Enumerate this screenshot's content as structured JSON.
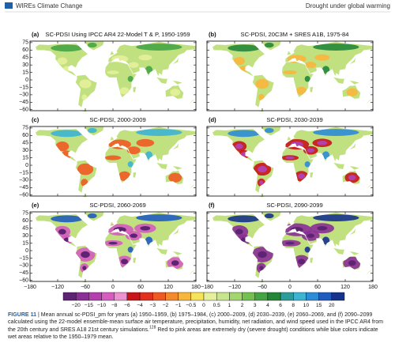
{
  "header": {
    "journal": "WIREs Climate Change",
    "section": "Drought under global warming"
  },
  "figure": {
    "panels": [
      {
        "label": "(a)",
        "title": "SC-PDSI Using IPCC AR4 22-Model T & P, 1950-1959"
      },
      {
        "label": "(b)",
        "title": "SC-PDSI, 20C3M + SRES A1B, 1975-84"
      },
      {
        "label": "(c)",
        "title": "SC-PDSI, 2000-2009"
      },
      {
        "label": "(d)",
        "title": "SC-PDSI, 2030-2039"
      },
      {
        "label": "(e)",
        "title": "SC-PDSI, 2060-2069"
      },
      {
        "label": "(f)",
        "title": "SC-PDSI, 2090-2099"
      }
    ],
    "lat_labels": [
      "75",
      "60",
      "45",
      "30",
      "15",
      "0",
      "−15",
      "−30",
      "−45",
      "−60"
    ],
    "lon_labels": [
      "−180",
      "−120",
      "−60",
      "0",
      "60",
      "120",
      "180"
    ],
    "colorbar": {
      "labels": [
        "−20",
        "−15",
        "−10",
        "−8",
        "−6",
        "−4",
        "−3",
        "−2",
        "−1",
        "−0.5",
        "0",
        "0.5",
        "1",
        "2",
        "3",
        "4",
        "6",
        "8",
        "10",
        "15",
        "20"
      ],
      "colors": [
        "#5e2473",
        "#8a2f96",
        "#b440ad",
        "#d65cbf",
        "#ee92cf",
        "#c8141a",
        "#e2301f",
        "#ef5a22",
        "#f58a2c",
        "#f9b63c",
        "#f7e35a",
        "#e6ef9a",
        "#c6e58c",
        "#a3d66e",
        "#74c050",
        "#45a544",
        "#23873a",
        "#2f9c9c",
        "#3cb4d2",
        "#2d8cd6",
        "#1f5cbe",
        "#16338c"
      ]
    }
  },
  "caption": {
    "label": "FIGURE 11",
    "text": " | Mean annual sc-PDSI_pm for years (a) 1950–1959, (b) 1975–1984, (c) 2000–2009, (d) 2030–2039, (e) 2060–2069, and (f) 2090–2099 calculated using the 22-model ensemble-mean surface air temperature, precipitation, humidity, net radiation, and wind speed used in the IPCC AR4 from the 20th century and SRES A18 21st century simulations.",
    "ref": "128",
    "text_end": " Red to pink areas are extremely dry (severe drought) conditions while blue colors indicate wet areas relative to the 1950–1979 mean."
  }
}
